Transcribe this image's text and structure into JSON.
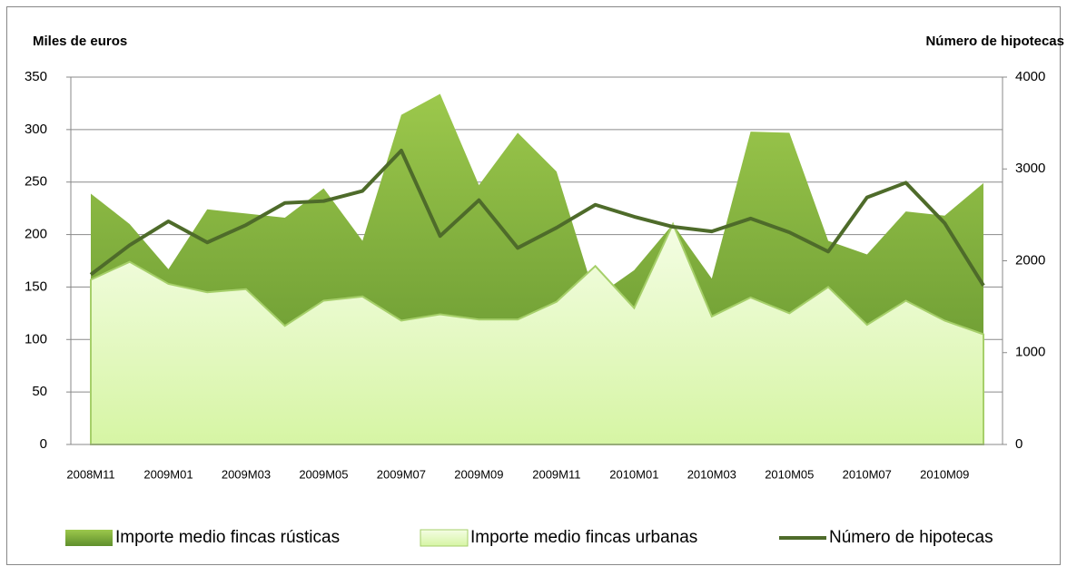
{
  "chart_data": {
    "type": "area",
    "y_axis_label": "Miles de euros",
    "y2_axis_label": "Número de hipotecas",
    "categories": [
      "2008M11",
      null,
      "2009M01",
      null,
      "2009M03",
      null,
      "2009M05",
      null,
      "2009M07",
      null,
      "2009M09",
      null,
      "2009M11",
      null,
      "2010M01",
      null,
      "2010M03",
      null,
      "2010M05",
      null,
      "2010M07",
      null,
      "2010M09",
      null
    ],
    "series": [
      {
        "name": "Importe medio fincas rústicas",
        "type": "area",
        "color": "#7aab3c",
        "values": [
          239,
          210,
          167,
          224,
          220,
          216,
          244,
          194,
          314,
          334,
          247,
          297,
          260,
          140,
          166,
          210,
          158,
          298,
          297,
          194,
          181,
          222,
          218,
          249
        ]
      },
      {
        "name": "Importe medio fincas urbanas",
        "type": "area",
        "color": "#e6f8c4",
        "values": [
          157,
          174,
          153,
          145,
          148,
          113,
          137,
          141,
          118,
          124,
          119,
          119,
          136,
          170,
          130,
          210,
          122,
          140,
          125,
          150,
          114,
          137,
          118,
          105
        ]
      },
      {
        "name": "Número de hipotecas",
        "type": "line",
        "color": "#4e6b2a",
        "axis": "y2",
        "values": [
          1850,
          2170,
          2430,
          2200,
          2390,
          2630,
          2650,
          2760,
          3200,
          2270,
          2660,
          2140,
          2360,
          2610,
          2480,
          2370,
          2320,
          2460,
          2310,
          2100,
          2690,
          2850,
          2410,
          1730
        ]
      }
    ],
    "ylim": [
      0,
      350
    ],
    "yticks": [
      0,
      50,
      100,
      150,
      200,
      250,
      300,
      350
    ],
    "y2lim": [
      0,
      4000
    ],
    "y2ticks": [
      0,
      1000,
      2000,
      3000,
      4000
    ],
    "grid": true,
    "legend": "bottom"
  }
}
